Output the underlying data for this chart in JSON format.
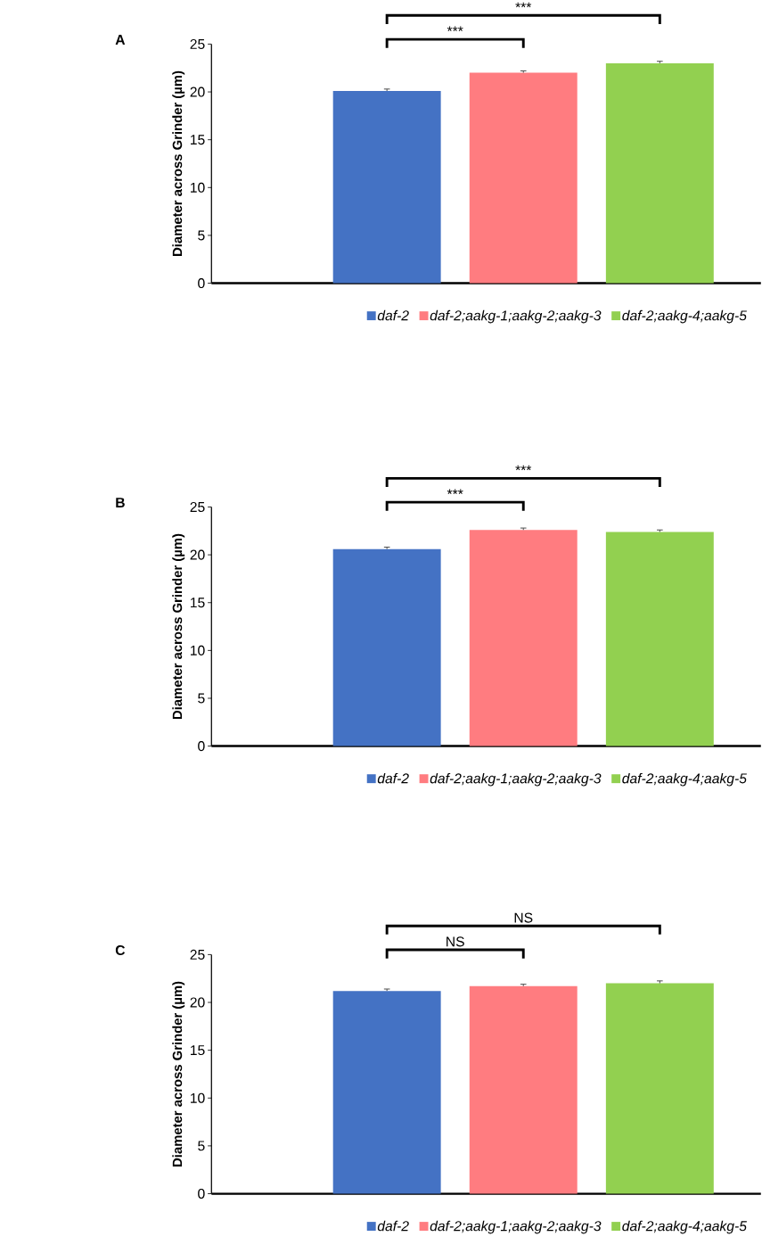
{
  "chart_data": [
    {
      "type": "bar",
      "title": "A",
      "categories": [
        null
      ],
      "ylabel": "Diameter across Grinder (µm)",
      "ylim": [
        0,
        25
      ],
      "yticks": [
        0,
        5,
        10,
        15,
        20,
        25
      ],
      "tick_labels": "y",
      "legend": "bottom",
      "annotations": [
        "***",
        "***"
      ],
      "series": [
        {
          "name": "daf-2",
          "color": "#4472c4",
          "values": [
            20.1
          ],
          "errors": [
            0.2
          ]
        },
        {
          "name": "daf-2;aakg-1;aakg-2;aakg-3",
          "color": "#ff7c80",
          "values": [
            22.0
          ],
          "errors": [
            0.2
          ]
        },
        {
          "name": "daf-2;aakg-4;aakg-5",
          "color": "#92d050",
          "values": [
            23.0
          ],
          "errors": [
            0.2
          ]
        }
      ]
    },
    {
      "type": "bar",
      "title": "B",
      "categories": [
        null
      ],
      "ylabel": "Diameter across Grinder (µm)",
      "ylim": [
        0,
        25
      ],
      "yticks": [
        0,
        5,
        10,
        15,
        20,
        25
      ],
      "tick_labels": "y",
      "legend": "bottom",
      "annotations": [
        "***",
        "***"
      ],
      "series": [
        {
          "name": "daf-2",
          "color": "#4472c4",
          "values": [
            20.6
          ],
          "errors": [
            0.2
          ]
        },
        {
          "name": "daf-2;aakg-1;aakg-2;aakg-3",
          "color": "#ff7c80",
          "values": [
            22.6
          ],
          "errors": [
            0.2
          ]
        },
        {
          "name": "daf-2;aakg-4;aakg-5",
          "color": "#92d050",
          "values": [
            22.4
          ],
          "errors": [
            0.2
          ]
        }
      ]
    },
    {
      "type": "bar",
      "title": "C",
      "categories": [
        null
      ],
      "ylabel": "Diameter across Grinder (µm)",
      "ylim": [
        0,
        25
      ],
      "yticks": [
        0,
        5,
        10,
        15,
        20,
        25
      ],
      "tick_labels": "y",
      "legend": "bottom",
      "annotations": [
        "NS",
        "NS"
      ],
      "series": [
        {
          "name": "daf-2",
          "color": "#4472c4",
          "values": [
            21.2
          ],
          "errors": [
            0.2
          ]
        },
        {
          "name": "daf-2;aakg-1;aakg-2;aakg-3",
          "color": "#ff7c80",
          "values": [
            21.7
          ],
          "errors": [
            0.2
          ]
        },
        {
          "name": "daf-2;aakg-4;aakg-5",
          "color": "#92d050",
          "values": [
            22.0
          ],
          "errors": [
            0.25
          ]
        }
      ]
    }
  ]
}
